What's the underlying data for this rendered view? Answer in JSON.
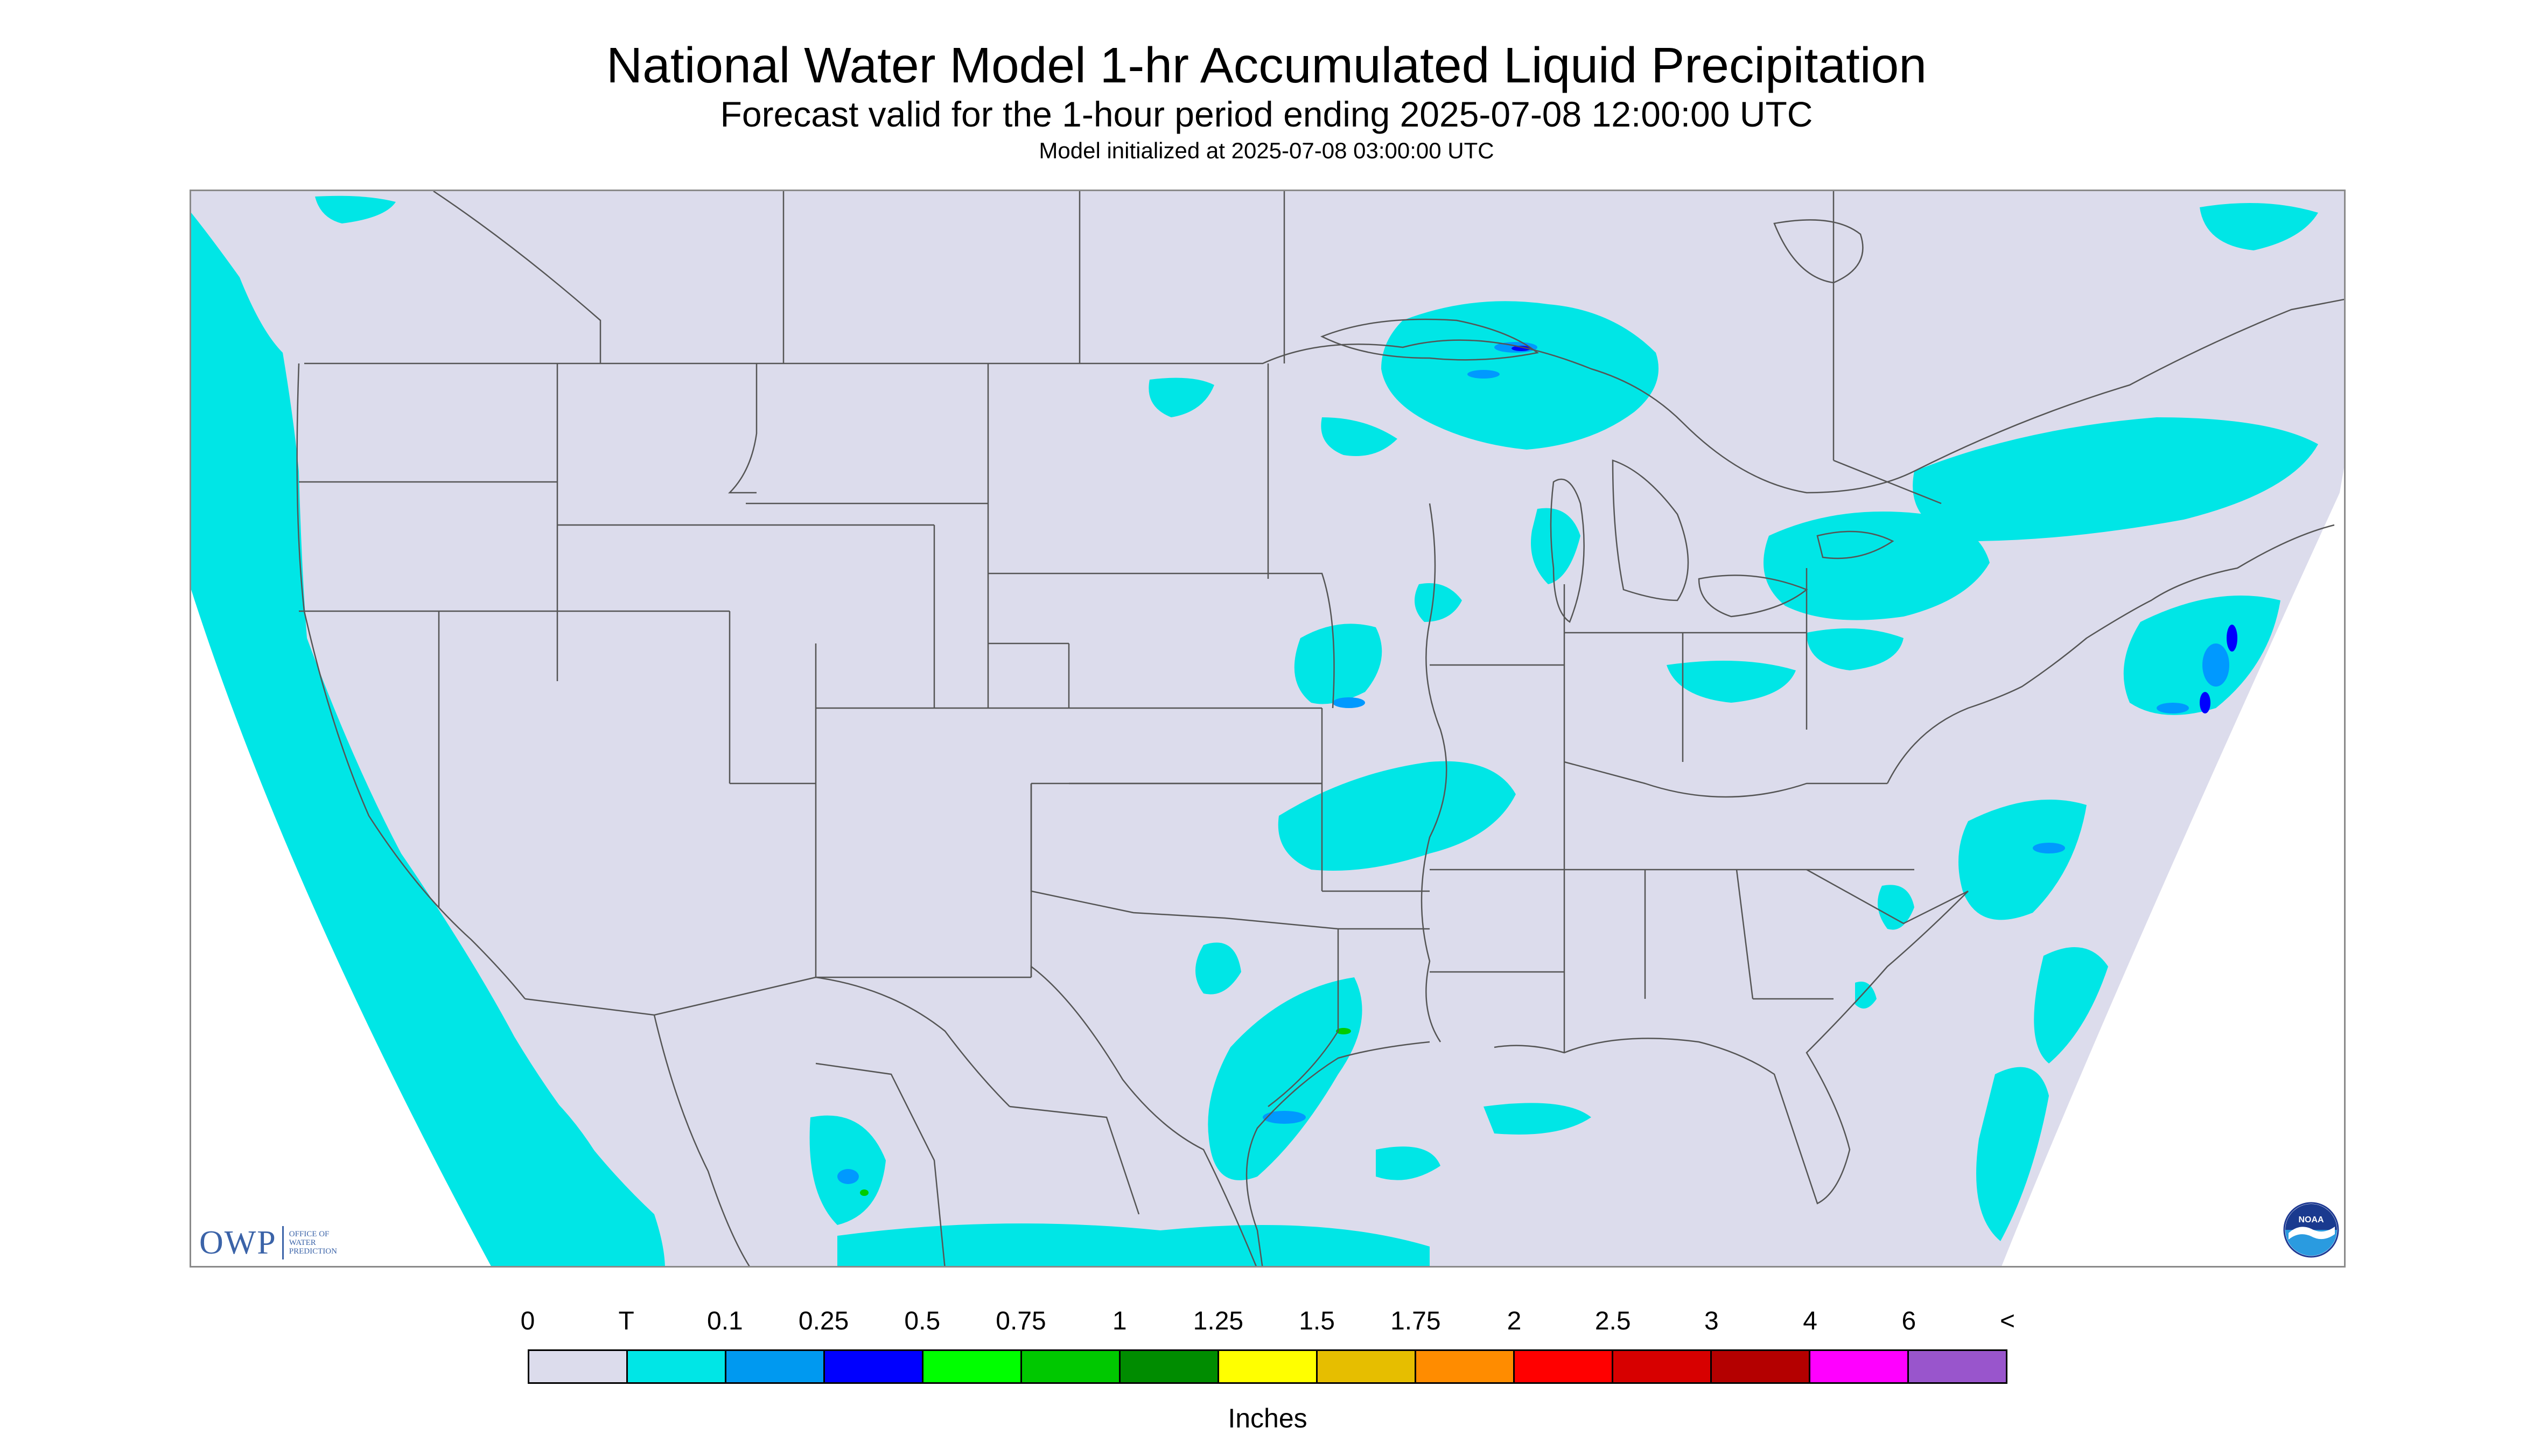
{
  "title": "National Water Model 1-hr Accumulated Liquid Precipitation",
  "subtitle": "Forecast valid for the 1-hour period ending 2025-07-08 12:00:00 UTC",
  "init_line": "Model initialized at 2025-07-08 03:00:00 UTC",
  "logos": {
    "owp_text": "OWP",
    "owp_sub_lines": [
      "OFFICE OF",
      "WATER",
      "PREDICTION"
    ],
    "noaa_text": "NOAA"
  },
  "map": {
    "region": "Contiguous United States",
    "background_color": "#dcdcec",
    "outside_domain_color": "#ffffff",
    "boundary_color": "#555555",
    "precip_light_color": "#00e6e6",
    "precip_moderate_color": "#0099ff",
    "precip_heavy_color": "#0000ff",
    "precip_peak_color": "#00cc00"
  },
  "legend": {
    "tick_labels": [
      "0",
      "T",
      "0.1",
      "0.25",
      "0.5",
      "0.75",
      "1",
      "1.25",
      "1.5",
      "1.75",
      "2",
      "2.5",
      "3",
      "4",
      "6",
      "<"
    ],
    "colors": [
      "#dcdcec",
      "#00e6e6",
      "#0099f0",
      "#0000ff",
      "#00ff00",
      "#00c800",
      "#008c00",
      "#ffff00",
      "#e6be00",
      "#ff8c00",
      "#ff0000",
      "#d70000",
      "#b40000",
      "#ff00ff",
      "#9955cc"
    ],
    "unit": "Inches"
  }
}
